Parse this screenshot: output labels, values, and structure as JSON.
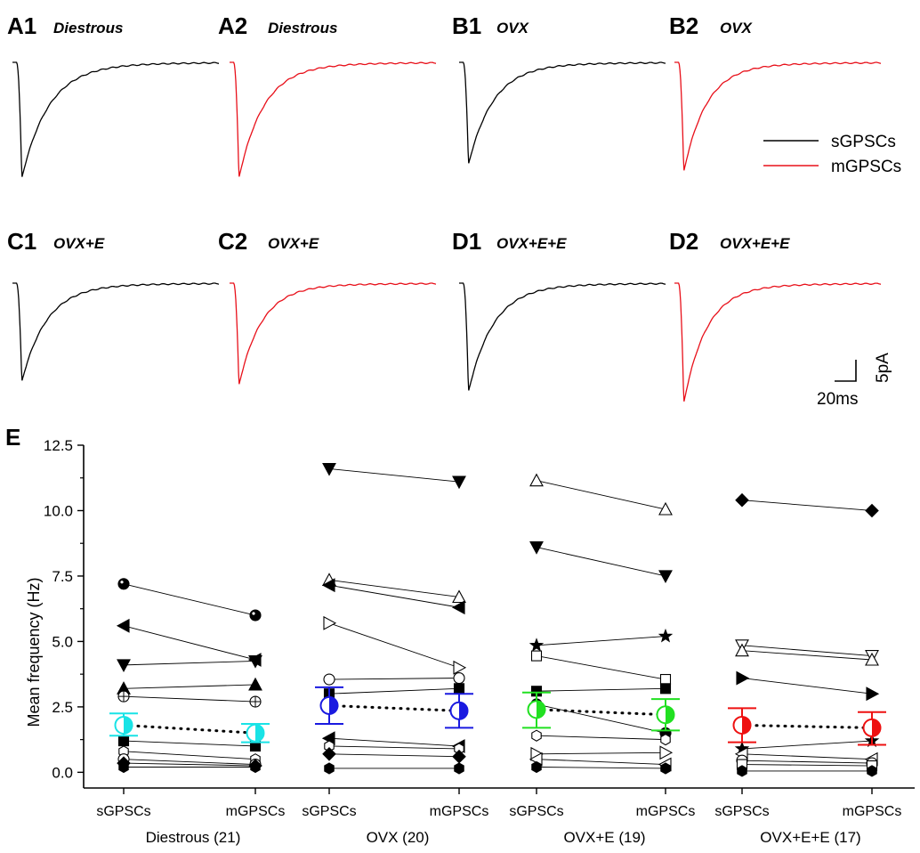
{
  "traces": [
    {
      "label": "A1",
      "title": "Diestrous",
      "color": "#000000",
      "depth": 0.93,
      "tau": 0.13
    },
    {
      "label": "A2",
      "title": "Diestrous",
      "color": "#e8101a",
      "depth": 0.93,
      "tau": 0.12
    },
    {
      "label": "B1",
      "title": "OVX",
      "color": "#000000",
      "depth": 0.82,
      "tau": 0.12
    },
    {
      "label": "B2",
      "title": "OVX",
      "color": "#e8101a",
      "depth": 0.88,
      "tau": 0.11
    },
    {
      "label": "C1",
      "title": "OVX+E",
      "color": "#000000",
      "depth": 0.78,
      "tau": 0.12
    },
    {
      "label": "C2",
      "title": "OVX+E",
      "color": "#e8101a",
      "depth": 0.81,
      "tau": 0.11
    },
    {
      "label": "D1",
      "title": "OVX+E+E",
      "color": "#000000",
      "depth": 0.86,
      "tau": 0.12
    },
    {
      "label": "D2",
      "title": "OVX+E+E",
      "color": "#e8101a",
      "depth": 0.95,
      "tau": 0.11
    }
  ],
  "legend": {
    "items": [
      {
        "label": "sGPSCs",
        "color": "#000000"
      },
      {
        "label": "mGPSCs",
        "color": "#e8101a"
      }
    ]
  },
  "scalebar": {
    "y_label": "5pA",
    "x_label": "20ms"
  },
  "panel_e": {
    "label": "E"
  },
  "chart_data": {
    "type": "scatter",
    "title": "",
    "ylabel": "Mean frequency (Hz)",
    "ylim": [
      -0.6,
      12.5
    ],
    "yticks": [
      0.0,
      2.5,
      5.0,
      7.5,
      10.0,
      12.5
    ],
    "ytick_labels": [
      "0.0",
      "2.5",
      "5.0",
      "7.5",
      "10.0",
      "12.5"
    ],
    "categories": [
      "sGPSCs",
      "mGPSCs"
    ],
    "grid": false,
    "groups": [
      {
        "name": "Diestrous (21)",
        "mean_color": "#19e3e6",
        "mean": {
          "sGPSCs": 1.8,
          "mGPSCs": 1.5
        },
        "error": {
          "sGPSCs": [
            1.4,
            2.25
          ],
          "mGPSCs": [
            1.15,
            1.85
          ]
        },
        "pairs": [
          {
            "marker": "sphere",
            "s": 7.2,
            "m": 6.0
          },
          {
            "marker": "tri-left",
            "s": 5.6,
            "m": 4.3
          },
          {
            "marker": "tri-down",
            "s": 4.1,
            "m": 4.25
          },
          {
            "marker": "tri-up",
            "s": 3.2,
            "m": 3.35
          },
          {
            "marker": "circle-plus",
            "s": 2.9,
            "m": 2.7
          },
          {
            "marker": "square",
            "s": 1.2,
            "m": 1.0
          },
          {
            "marker": "hexagon-open",
            "s": 0.8,
            "m": 0.5
          },
          {
            "marker": "circle-open",
            "s": 0.5,
            "m": 0.3
          },
          {
            "marker": "diamond",
            "s": 0.35,
            "m": 0.25
          },
          {
            "marker": "hexagon",
            "s": 0.2,
            "m": 0.2
          }
        ]
      },
      {
        "name": "OVX (20)",
        "mean_color": "#1a1ae0",
        "mean": {
          "sGPSCs": 2.55,
          "mGPSCs": 2.35
        },
        "error": {
          "sGPSCs": [
            1.85,
            3.25
          ],
          "mGPSCs": [
            1.7,
            3.0
          ]
        },
        "pairs": [
          {
            "marker": "tri-down",
            "s": 11.6,
            "m": 11.1
          },
          {
            "marker": "tri-up-open",
            "s": 7.35,
            "m": 6.7
          },
          {
            "marker": "tri-left",
            "s": 7.15,
            "m": 6.3
          },
          {
            "marker": "tri-right-open",
            "s": 5.7,
            "m": 4.0
          },
          {
            "marker": "circle-open",
            "s": 3.55,
            "m": 3.6
          },
          {
            "marker": "square",
            "s": 3.0,
            "m": 3.2
          },
          {
            "marker": "tri-left",
            "s": 1.3,
            "m": 1.0
          },
          {
            "marker": "hexagon-open",
            "s": 1.0,
            "m": 0.9
          },
          {
            "marker": "diamond",
            "s": 0.7,
            "m": 0.6
          },
          {
            "marker": "hexagon",
            "s": 0.15,
            "m": 0.15
          }
        ]
      },
      {
        "name": "OVX+E (19)",
        "mean_color": "#21e021",
        "mean": {
          "sGPSCs": 2.4,
          "mGPSCs": 2.2
        },
        "error": {
          "sGPSCs": [
            1.7,
            3.05
          ],
          "mGPSCs": [
            1.6,
            2.8
          ]
        },
        "pairs": [
          {
            "marker": "tri-up-open",
            "s": 11.15,
            "m": 10.05
          },
          {
            "marker": "tri-down",
            "s": 8.6,
            "m": 7.5
          },
          {
            "marker": "star",
            "s": 4.85,
            "m": 5.2
          },
          {
            "marker": "square-open",
            "s": 4.45,
            "m": 3.55
          },
          {
            "marker": "square",
            "s": 3.1,
            "m": 3.2
          },
          {
            "marker": "circle",
            "s": 2.6,
            "m": 1.5
          },
          {
            "marker": "hexagon-open",
            "s": 1.4,
            "m": 1.25
          },
          {
            "marker": "tri-right-open",
            "s": 0.7,
            "m": 0.75
          },
          {
            "marker": "tri-left-open",
            "s": 0.5,
            "m": 0.3
          },
          {
            "marker": "hexagon",
            "s": 0.2,
            "m": 0.15
          }
        ]
      },
      {
        "name": "OVX+E+E (17)",
        "mean_color": "#ee1111",
        "mean": {
          "sGPSCs": 1.8,
          "mGPSCs": 1.7
        },
        "error": {
          "sGPSCs": [
            1.15,
            2.45
          ],
          "mGPSCs": [
            1.05,
            2.3
          ]
        },
        "pairs": [
          {
            "marker": "diamond",
            "s": 10.4,
            "m": 10.0
          },
          {
            "marker": "tri-down-open",
            "s": 4.85,
            "m": 4.45
          },
          {
            "marker": "tri-up-open",
            "s": 4.65,
            "m": 4.3
          },
          {
            "marker": "tri-right",
            "s": 3.6,
            "m": 3.0
          },
          {
            "marker": "star",
            "s": 0.9,
            "m": 1.2
          },
          {
            "marker": "tri-left-open",
            "s": 0.7,
            "m": 0.5
          },
          {
            "marker": "circle-open",
            "s": 0.45,
            "m": 0.35
          },
          {
            "marker": "square-open",
            "s": 0.3,
            "m": 0.25
          },
          {
            "marker": "hexagon",
            "s": 0.05,
            "m": 0.05
          }
        ]
      }
    ]
  }
}
